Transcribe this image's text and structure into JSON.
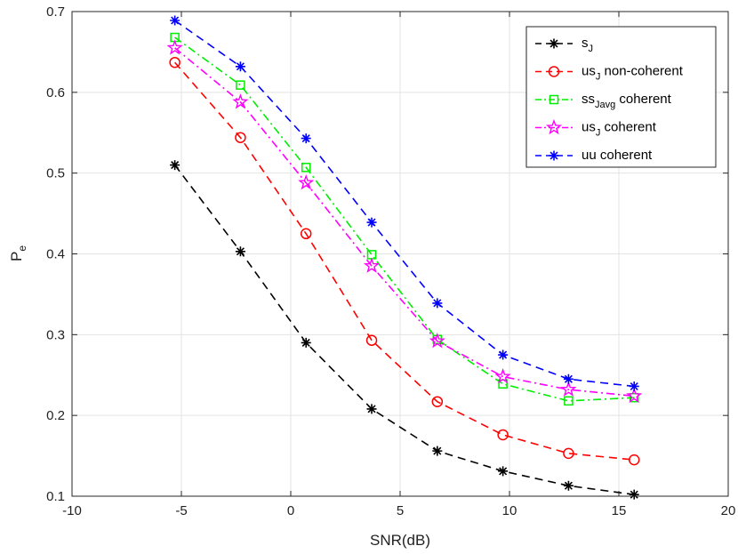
{
  "chart_data": {
    "type": "line",
    "title": "",
    "xlabel": "SNR(dB)",
    "ylabel": {
      "main": "P",
      "sub": "e"
    },
    "xlim": [
      -10,
      20
    ],
    "ylim": [
      0.1,
      0.7
    ],
    "xticks": [
      -10,
      -5,
      0,
      5,
      10,
      15,
      20
    ],
    "yticks": [
      0.1,
      0.2,
      0.3,
      0.4,
      0.5,
      0.6,
      0.7
    ],
    "grid": true,
    "legend_position": "top-right",
    "x": [
      -5.3,
      -2.3,
      0.7,
      3.7,
      6.7,
      9.7,
      12.7,
      15.7
    ],
    "series": [
      {
        "name": "s_J",
        "label_main": "s",
        "label_sub": "J",
        "label_rest": "",
        "color": "#000000",
        "dash": "9,6",
        "marker": "asterisk",
        "values": [
          0.51,
          0.403,
          0.29,
          0.208,
          0.156,
          0.131,
          0.113,
          0.102
        ]
      },
      {
        "name": "us_J non-coherent",
        "label_main": "us",
        "label_sub": "J",
        "label_rest": " non-coherent",
        "color": "#ff0000",
        "dash": "9,6",
        "marker": "circle",
        "values": [
          0.637,
          0.544,
          0.425,
          0.293,
          0.217,
          0.176,
          0.153,
          0.145
        ]
      },
      {
        "name": "ss_Javg coherent",
        "label_main": "ss",
        "label_sub": "Javg",
        "label_rest": " coherent",
        "color": "#00ee00",
        "dash": "9,4,2,4",
        "marker": "square",
        "values": [
          0.668,
          0.609,
          0.507,
          0.399,
          0.294,
          0.239,
          0.218,
          0.222
        ]
      },
      {
        "name": "us_J coherent",
        "label_main": "us",
        "label_sub": "J",
        "label_rest": " coherent",
        "color": "#ff00ff",
        "dash": "9,4,2,4",
        "marker": "star",
        "values": [
          0.655,
          0.588,
          0.488,
          0.385,
          0.292,
          0.248,
          0.232,
          0.224
        ]
      },
      {
        "name": "uu coherent",
        "label_main": "uu coherent",
        "label_sub": "",
        "label_rest": "",
        "color": "#0000ff",
        "dash": "9,6",
        "marker": "asterisk",
        "values": [
          0.689,
          0.632,
          0.543,
          0.439,
          0.339,
          0.275,
          0.245,
          0.236
        ]
      }
    ]
  }
}
